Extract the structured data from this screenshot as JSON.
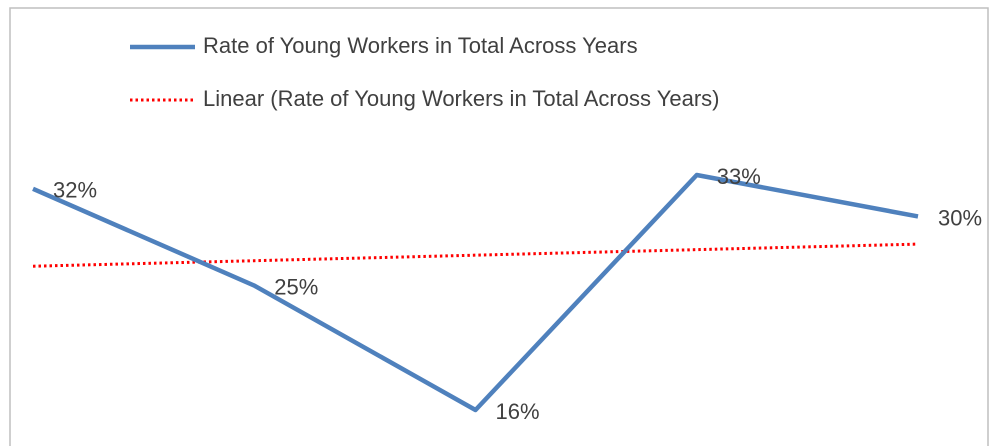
{
  "chart_data": {
    "type": "line",
    "categories": [
      null,
      null,
      null,
      null,
      null
    ],
    "series": [
      {
        "name": "Rate of Young Workers in Total Across Years",
        "color": "#4f81bd",
        "style": "solid",
        "values": [
          32,
          25,
          16,
          33,
          30
        ],
        "value_labels": [
          "32%",
          "25%",
          "16%",
          "33%",
          "30%"
        ]
      },
      {
        "name": "Linear (Rate of Young Workers in Total Across Years)",
        "color": "#ff0000",
        "style": "dotted",
        "values": [
          26.4,
          26.8,
          27.2,
          27.6,
          28.0
        ]
      }
    ],
    "legend": "top"
  }
}
